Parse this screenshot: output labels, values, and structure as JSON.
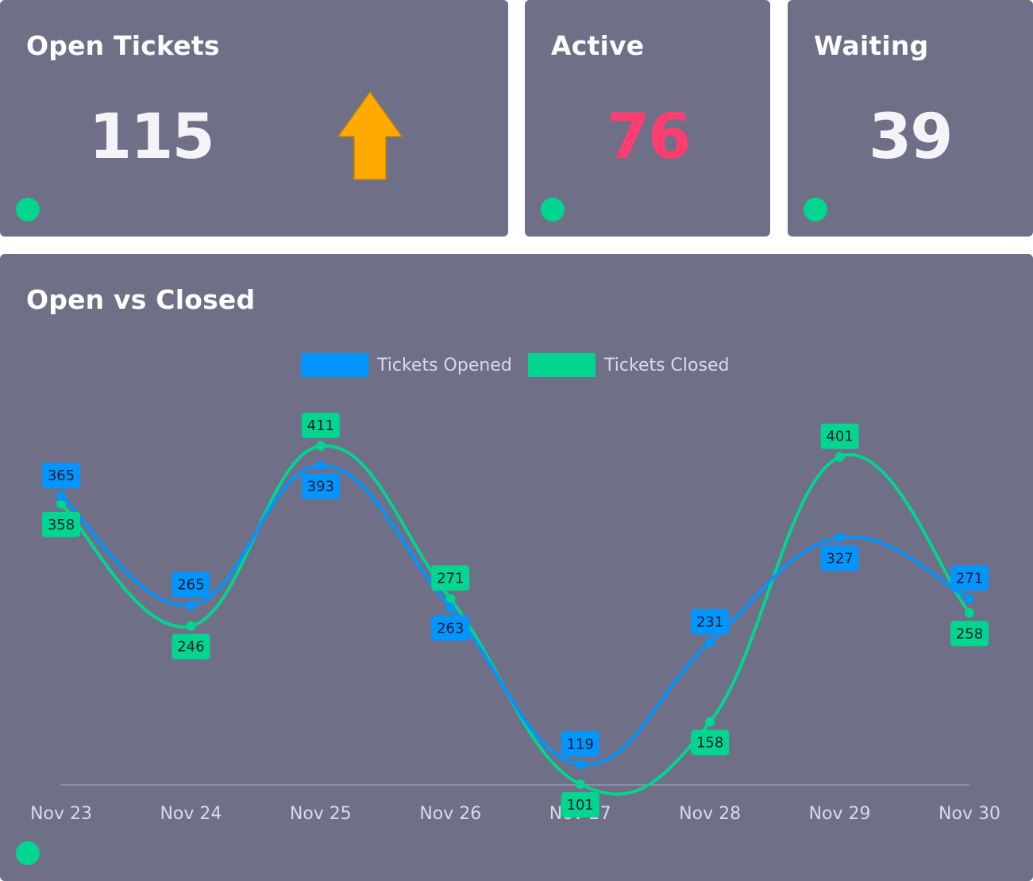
{
  "cards": {
    "open": {
      "title": "Open Tickets",
      "value": "115",
      "trend": "up-arrow-icon",
      "trend_color": "#ffaa00",
      "status_color": "#00d68f"
    },
    "active": {
      "title": "Active",
      "value": "76",
      "value_color": "#ff3d71",
      "status_color": "#00d68f"
    },
    "waiting": {
      "title": "Waiting",
      "value": "39",
      "status_color": "#00d68f"
    }
  },
  "chart_panel": {
    "title": "Open vs Closed",
    "status_color": "#00d68f"
  },
  "chart_data": {
    "type": "line",
    "categories": [
      "Nov 23",
      "Nov 24",
      "Nov 25",
      "Nov 26",
      "Nov 27",
      "Nov 28",
      "Nov 29",
      "Nov 30"
    ],
    "series": [
      {
        "name": "Tickets Opened",
        "color": "#0095ff",
        "values": [
          365,
          265,
          393,
          263,
          119,
          231,
          327,
          271
        ]
      },
      {
        "name": "Tickets Closed",
        "color": "#00d68f",
        "values": [
          358,
          246,
          411,
          271,
          101,
          158,
          401,
          258
        ]
      }
    ],
    "ylim": [
      101,
      411
    ],
    "legend": "top-center",
    "grid": false,
    "smooth": true
  }
}
